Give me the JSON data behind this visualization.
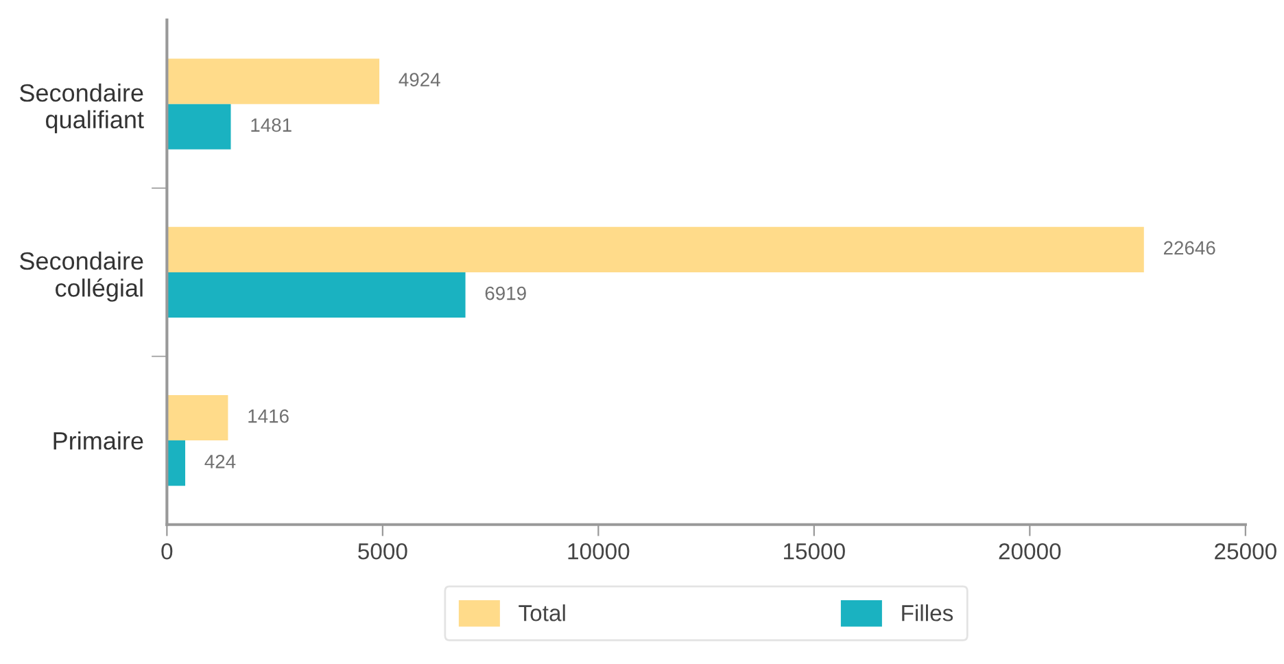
{
  "chart_data": {
    "type": "bar",
    "orientation": "horizontal",
    "categories": [
      "Secondaire\nqualifiant",
      "Secondaire\ncollégial",
      "Primaire"
    ],
    "series": [
      {
        "name": "Total",
        "color": "#ffdb8a",
        "values": [
          4924,
          22646,
          1416
        ]
      },
      {
        "name": "Filles",
        "color": "#1ab2c1",
        "values": [
          1481,
          6919,
          424
        ]
      }
    ],
    "xlim": [
      0,
      25000
    ],
    "xticks": [
      0,
      5000,
      10000,
      15000,
      20000,
      25000
    ],
    "data_labels": true,
    "legend": "bottom",
    "grid": false
  }
}
